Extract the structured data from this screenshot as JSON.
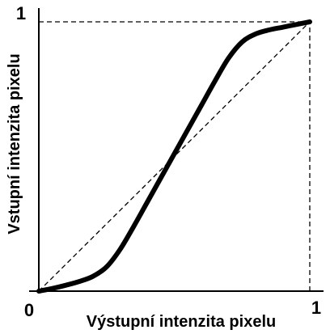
{
  "chart_data": {
    "type": "line",
    "title": "",
    "xlabel": "Výstupní intenzita pixelu",
    "ylabel": "Vstupní intenzita pixelu",
    "xlim": [
      0,
      1
    ],
    "ylim": [
      0,
      1
    ],
    "x_tick_labels": [
      "0",
      "1"
    ],
    "y_tick_labels": [
      "1"
    ],
    "grid": false,
    "legend": "none",
    "colors": {
      "curve": "#000000",
      "reference": "#000000",
      "axes": "#000000"
    },
    "series": [
      {
        "style": "solid-thick",
        "x": [
          0.0,
          0.05,
          0.1,
          0.15,
          0.2,
          0.25,
          0.3,
          0.35,
          0.4,
          0.45,
          0.5,
          0.55,
          0.6,
          0.65,
          0.7,
          0.75,
          0.8,
          0.85,
          0.9,
          0.95,
          1.0
        ],
        "y": [
          0.0,
          0.01,
          0.022,
          0.036,
          0.055,
          0.09,
          0.155,
          0.24,
          0.33,
          0.42,
          0.51,
          0.6,
          0.69,
          0.78,
          0.865,
          0.925,
          0.955,
          0.97,
          0.98,
          0.99,
          1.0
        ]
      },
      {
        "style": "dashed-reference",
        "x": [
          0,
          1
        ],
        "y": [
          0,
          1
        ]
      }
    ],
    "guides": [
      {
        "style": "dashed",
        "from": [
          0,
          1
        ],
        "to": [
          1,
          1
        ]
      },
      {
        "style": "dashed",
        "from": [
          1,
          0
        ],
        "to": [
          1,
          1
        ]
      }
    ]
  }
}
